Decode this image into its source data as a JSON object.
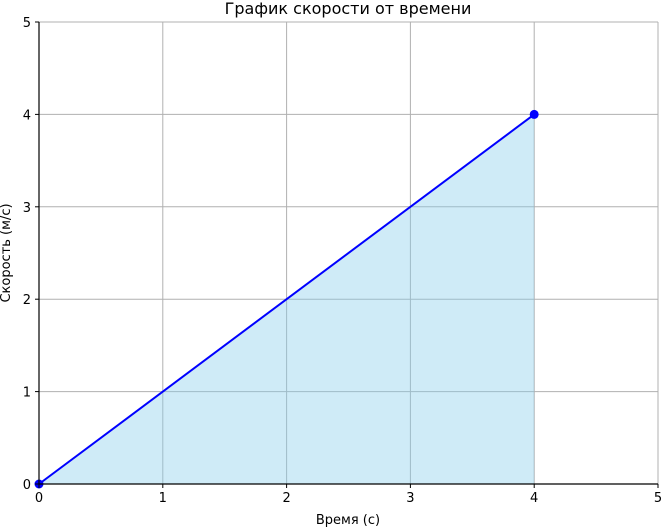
{
  "chart_data": {
    "type": "area",
    "title": "График скорости от времени",
    "xlabel": "Время (с)",
    "ylabel": "Скорость (м/с)",
    "xlim": [
      0,
      5
    ],
    "ylim": [
      0,
      5
    ],
    "xticks": [
      "0",
      "1",
      "2",
      "3",
      "4",
      "5"
    ],
    "yticks": [
      "0",
      "1",
      "2",
      "3",
      "4",
      "5"
    ],
    "grid": true,
    "series": [
      {
        "x": [
          0,
          4
        ],
        "y": [
          0,
          4
        ],
        "line_color": "#0000ff",
        "fill_color": "#87ceeb",
        "fill_opacity": 0.4,
        "markers_at": [
          [
            0,
            0
          ],
          [
            4,
            4
          ]
        ]
      }
    ]
  }
}
